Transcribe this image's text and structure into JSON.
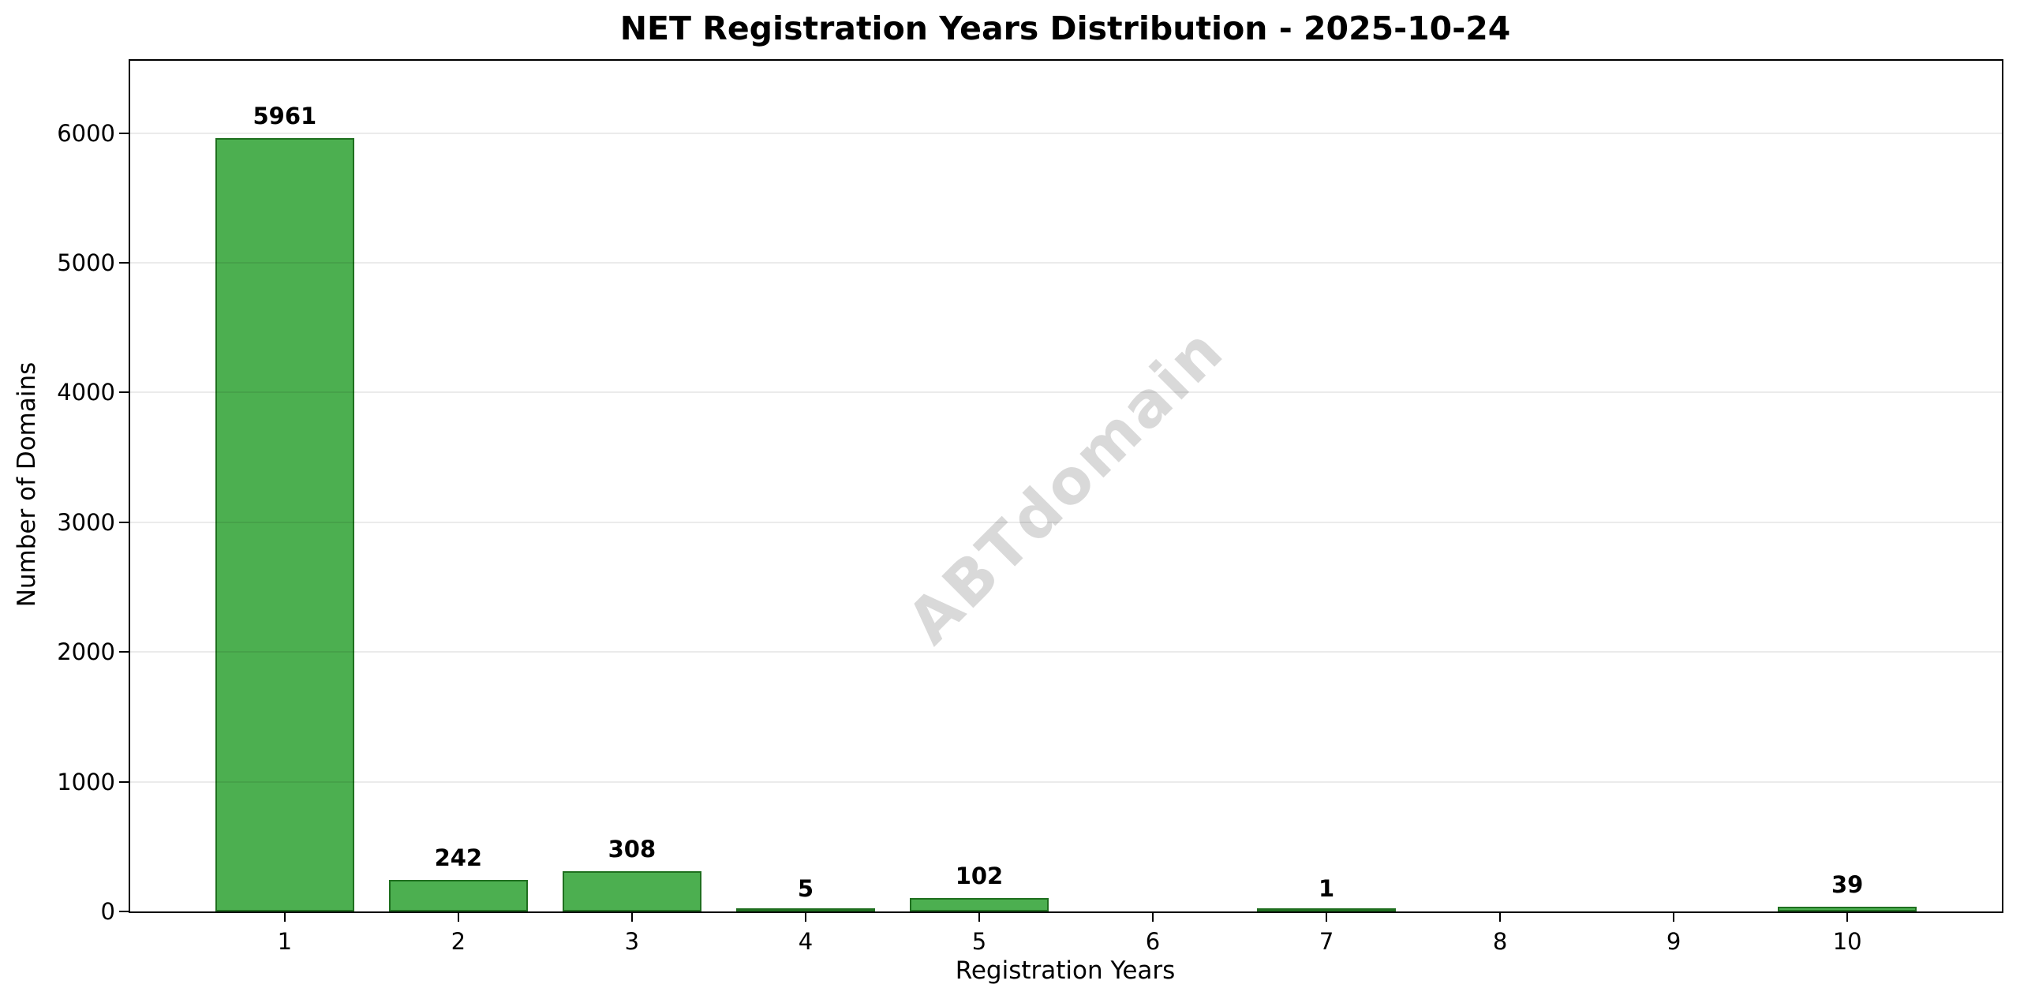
{
  "chart_data": {
    "type": "bar",
    "title": "NET Registration Years Distribution - 2025-10-24",
    "xlabel": "Registration Years",
    "ylabel": "Number of Domains",
    "categories": [
      "1",
      "2",
      "3",
      "4",
      "5",
      "6",
      "7",
      "8",
      "9",
      "10"
    ],
    "values": [
      5961,
      242,
      308,
      5,
      102,
      0,
      1,
      0,
      0,
      39
    ],
    "bar_labels": [
      "5961",
      "242",
      "308",
      "5",
      "102",
      "",
      "1",
      "",
      "",
      "39"
    ],
    "yticks": [
      0,
      1000,
      2000,
      3000,
      4000,
      5000,
      6000
    ],
    "ylim": [
      0,
      6557
    ],
    "xlim": [
      0.11,
      10.89
    ],
    "bar_width_units": 0.8,
    "grid": "horizontal",
    "legend": "none",
    "watermark": "ABTdomain",
    "colors": {
      "bar_fill": "#4caf50",
      "bar_edge": "#1f6f1f",
      "grid": "#ebebeb",
      "spine": "#000000",
      "watermark": "#d9d9d9",
      "background": "#ffffff",
      "text": "#000000"
    }
  }
}
